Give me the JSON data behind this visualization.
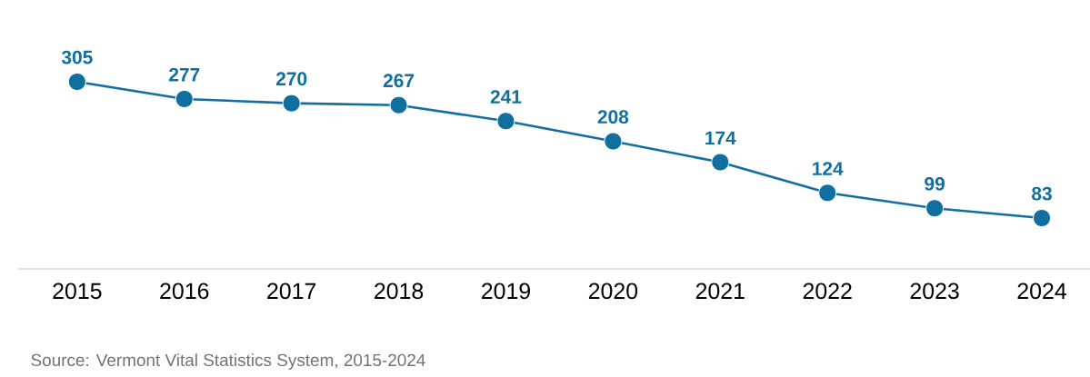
{
  "chart_data": {
    "type": "line",
    "categories": [
      "2015",
      "2016",
      "2017",
      "2018",
      "2019",
      "2020",
      "2021",
      "2022",
      "2023",
      "2024"
    ],
    "values": [
      305,
      277,
      270,
      267,
      241,
      208,
      174,
      124,
      99,
      83
    ],
    "color": "#106f9f",
    "tick_labels": "x",
    "data_labels": true,
    "marker": "circle",
    "line_style": "solid",
    "annotations": [
      "Source: Vermont Vital Statistics System, 2015-2024"
    ]
  }
}
